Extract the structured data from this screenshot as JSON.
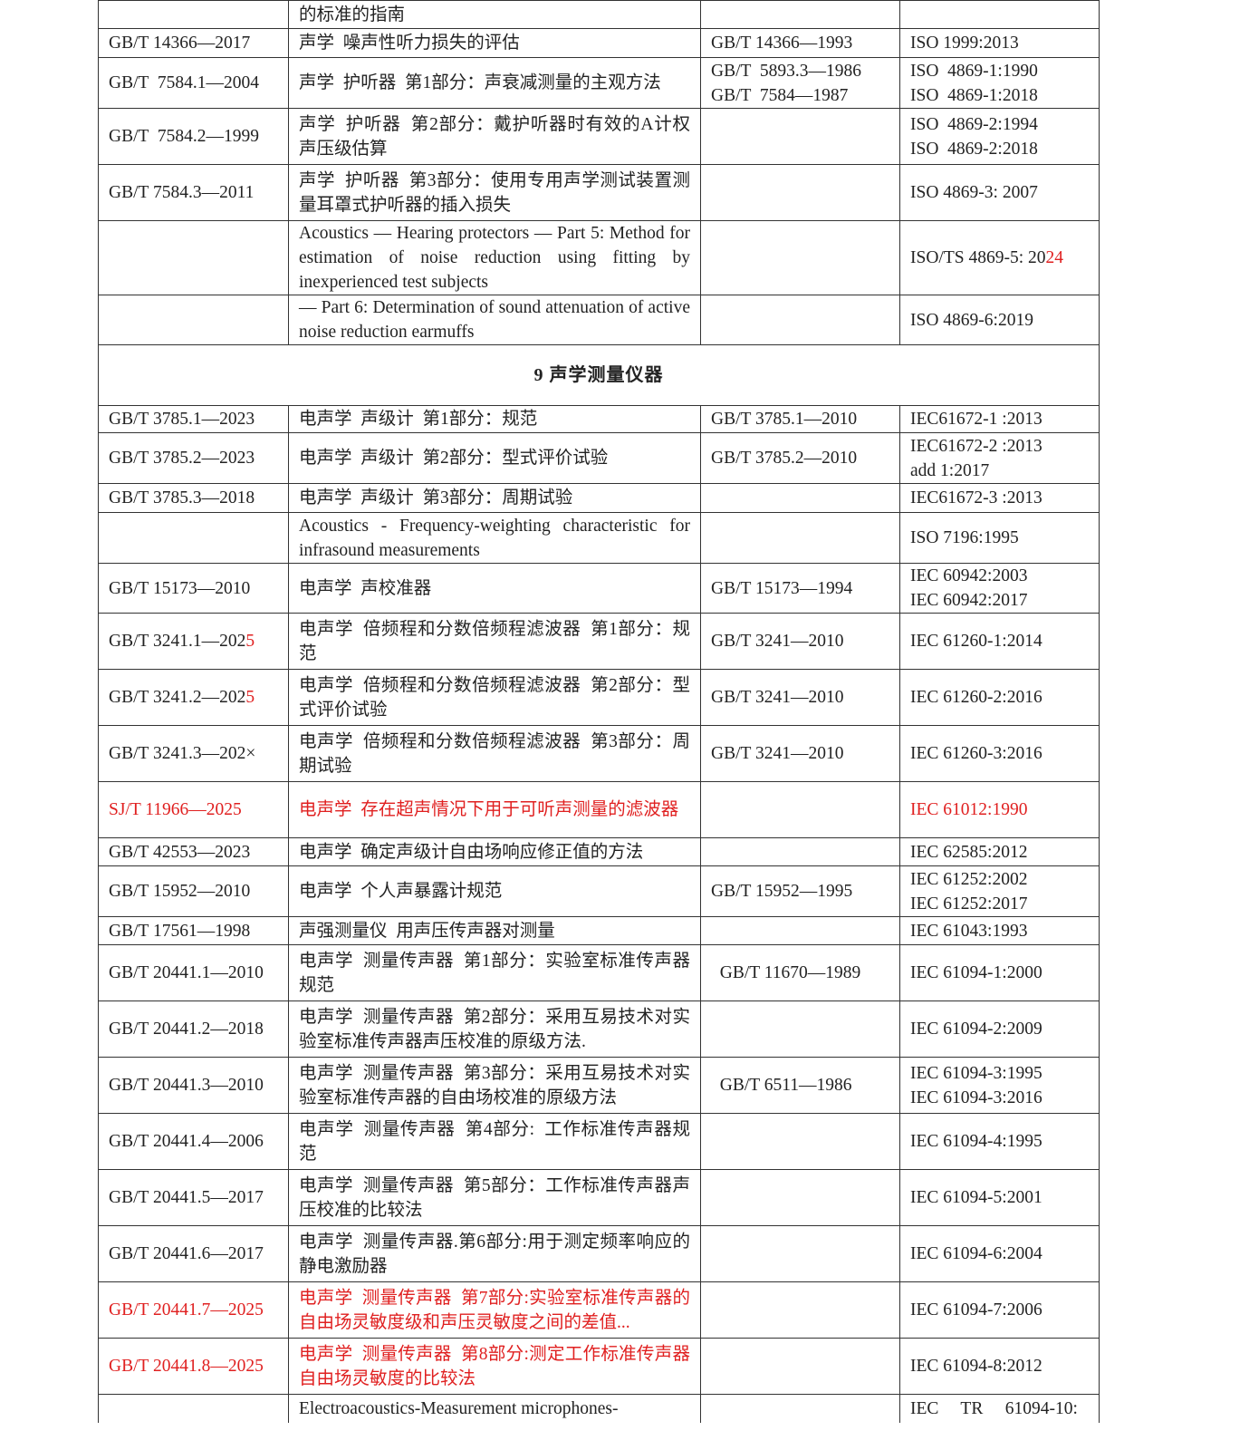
{
  "table": {
    "rows": [
      {
        "c1": [],
        "c2": [
          [
            {
              "t": "的标准的指南"
            }
          ]
        ],
        "c3": [],
        "c4": []
      },
      {
        "c1": [
          [
            {
              "t": "GB/T 14366—2017"
            }
          ]
        ],
        "c2": [
          [
            {
              "t": "声学  噪声性听力损失的评估"
            }
          ]
        ],
        "c3": [
          [
            {
              "t": "GB/T 14366—1993"
            }
          ]
        ],
        "c4": [
          [
            {
              "t": "ISO 1999:2013"
            }
          ]
        ]
      },
      {
        "c1": [
          [
            {
              "t": "GB/T  7584.1—2004"
            }
          ]
        ],
        "c2": [
          [
            {
              "t": "声学  护听器  第1部分：声衰减测量的主观方法"
            }
          ]
        ],
        "c3": [
          [
            {
              "t": "GB/T  5893.3—1986"
            }
          ],
          [
            {
              "t": "GB/T  7584—1987"
            }
          ]
        ],
        "c4": [
          [
            {
              "t": "ISO  4869-1:1990"
            }
          ],
          [
            {
              "t": "ISO  4869-1:2018"
            }
          ]
        ]
      },
      {
        "c1": [
          [
            {
              "t": "GB/T  7584.2—1999"
            }
          ]
        ],
        "c2": [
          [
            {
              "t": "声学  护听器  第2部分：戴护听器时有效的A计权声压级估算"
            }
          ]
        ],
        "c3": [],
        "c4": [
          [
            {
              "t": "ISO  4869-2:1994"
            }
          ],
          [
            {
              "t": "ISO  4869-2:2018"
            }
          ]
        ]
      },
      {
        "c1": [
          [
            {
              "t": "GB/T 7584.3—2011"
            }
          ]
        ],
        "c2": [
          [
            {
              "t": "声学  护听器  第3部分：使用专用声学测试装置测量耳罩式护听器的插入损失"
            }
          ]
        ],
        "c3": [],
        "c4": [
          [
            {
              "t": "ISO 4869-3: 2007"
            }
          ]
        ]
      },
      {
        "c1": [],
        "c2": [
          [
            {
              "t": "Acoustics — Hearing protectors — Part 5: Method for estimation of noise reduction using fitting by inexperienced test subjects"
            }
          ]
        ],
        "c3": [],
        "c4": [
          [
            {
              "t": "ISO/TS 4869-5: 20"
            },
            {
              "t": "24",
              "red": true
            }
          ]
        ]
      },
      {
        "c1": [],
        "c2": [
          [
            {
              "t": "— Part 6: Determination of sound attenuation of active noise reduction earmuffs"
            }
          ]
        ],
        "c3": [],
        "c4": [
          [
            {
              "t": "ISO 4869-6:2019"
            }
          ]
        ]
      },
      {
        "section": "9    声学测量仪器"
      },
      {
        "c1": [
          [
            {
              "t": "GB/T 3785.1—2023"
            }
          ]
        ],
        "c2": [
          [
            {
              "t": "电声学  声级计  第1部分：规范"
            }
          ]
        ],
        "c3": [
          [
            {
              "t": "GB/T 3785.1—2010"
            }
          ]
        ],
        "c4": [
          [
            {
              "t": "IEC61672-1 :2013"
            }
          ]
        ]
      },
      {
        "c1": [
          [
            {
              "t": "GB/T 3785.2—2023"
            }
          ]
        ],
        "c2": [
          [
            {
              "t": "电声学  声级计  第2部分：型式评价试验"
            }
          ]
        ],
        "c3": [
          [
            {
              "t": "GB/T 3785.2—2010"
            }
          ]
        ],
        "c4": [
          [
            {
              "t": "IEC61672-2 :2013"
            }
          ],
          [
            {
              "t": "add 1:2017"
            }
          ]
        ]
      },
      {
        "c1": [
          [
            {
              "t": "GB/T 3785.3—2018"
            }
          ]
        ],
        "c2": [
          [
            {
              "t": "电声学  声级计  第3部分：周期试验"
            }
          ]
        ],
        "c3": [],
        "c4": [
          [
            {
              "t": "IEC61672-3 :2013"
            }
          ]
        ]
      },
      {
        "c1": [],
        "c2": [
          [
            {
              "t": "Acoustics - Frequency-weighting characteristic for infrasound measurements"
            }
          ]
        ],
        "c3": [],
        "c4": [
          [
            {
              "t": "ISO 7196:1995"
            }
          ]
        ]
      },
      {
        "c1": [
          [
            {
              "t": "GB/T 15173—2010"
            }
          ]
        ],
        "c2": [
          [
            {
              "t": "电声学  声校准器"
            }
          ]
        ],
        "c3": [
          [
            {
              "t": "GB/T 15173—1994"
            }
          ]
        ],
        "c4": [
          [
            {
              "t": "IEC 60942:2003"
            }
          ],
          [
            {
              "t": "IEC 60942:2017"
            }
          ]
        ]
      },
      {
        "c1": [
          [
            {
              "t": "GB/T 3241.1—202"
            },
            {
              "t": "5",
              "red": true
            }
          ]
        ],
        "c2": [
          [
            {
              "t": "电声学  倍频程和分数倍频程滤波器  第1部分：规范"
            }
          ]
        ],
        "c3": [
          [
            {
              "t": "GB/T 3241—2010"
            }
          ]
        ],
        "c4": [
          [
            {
              "t": "IEC 61260-1:2014"
            }
          ]
        ]
      },
      {
        "c1": [
          [
            {
              "t": "GB/T 3241.2—202"
            },
            {
              "t": "5",
              "red": true
            }
          ]
        ],
        "c2": [
          [
            {
              "t": "电声学  倍频程和分数倍频程滤波器  第2部分：型式评价试验"
            }
          ]
        ],
        "c3": [
          [
            {
              "t": "GB/T 3241—2010"
            }
          ]
        ],
        "c4": [
          [
            {
              "t": "IEC 61260-2:2016"
            }
          ]
        ]
      },
      {
        "c1": [
          [
            {
              "t": "GB/T 3241.3—202×"
            }
          ]
        ],
        "c2": [
          [
            {
              "t": "电声学  倍频程和分数倍频程滤波器  第3部分：周期试验"
            }
          ]
        ],
        "c3": [
          [
            {
              "t": "GB/T 3241—2010"
            }
          ]
        ],
        "c4": [
          [
            {
              "t": "IEC 61260-3:2016"
            }
          ]
        ]
      },
      {
        "c1": [
          [
            {
              "t": "SJ/T 11966—2025",
              "red": true
            }
          ]
        ],
        "c2": [
          [
            {
              "t": "电声学  存在超声情况下用于可听声测量的滤波器",
              "red": true
            }
          ]
        ],
        "c3": [],
        "c4": [
          [
            {
              "t": "IEC 61012:1990",
              "red": true
            }
          ]
        ]
      },
      {
        "c1": [
          [
            {
              "t": "GB/T 42553—2023"
            }
          ]
        ],
        "c2": [
          [
            {
              "t": "电声学  确定声级计自由场响应修正值的方法"
            }
          ]
        ],
        "c3": [],
        "c4": [
          [
            {
              "t": "IEC 62585:2012"
            }
          ]
        ]
      },
      {
        "c1": [
          [
            {
              "t": "GB/T 15952—2010"
            }
          ]
        ],
        "c2": [
          [
            {
              "t": "电声学  个人声暴露计规范"
            }
          ]
        ],
        "c3": [
          [
            {
              "t": "GB/T 15952—1995"
            }
          ]
        ],
        "c4": [
          [
            {
              "t": "IEC 61252:2002"
            }
          ],
          [
            {
              "t": "IEC 61252:2017"
            }
          ]
        ]
      },
      {
        "c1": [
          [
            {
              "t": "GB/T 17561—1998"
            }
          ]
        ],
        "c2": [
          [
            {
              "t": "声强测量仪  用声压传声器对测量"
            }
          ]
        ],
        "c3": [],
        "c4": [
          [
            {
              "t": "IEC 61043:1993"
            }
          ]
        ]
      },
      {
        "c1": [
          [
            {
              "t": "GB/T 20441.1—2010"
            }
          ]
        ],
        "c2": [
          [
            {
              "t": "电声学  测量传声器  第1部分：实验室标准传声器规范"
            }
          ]
        ],
        "c3": [
          [
            {
              "t": "  GB/T 11670—1989"
            }
          ]
        ],
        "c4": [
          [
            {
              "t": "IEC 61094-1:2000"
            }
          ]
        ]
      },
      {
        "c1": [
          [
            {
              "t": "GB/T 20441.2—2018"
            }
          ]
        ],
        "c2": [
          [
            {
              "t": "电声学  测量传声器  第2部分：采用互易技术对实验室标准传声器声压校准的原级方法."
            }
          ]
        ],
        "c3": [],
        "c4": [
          [
            {
              "t": "IEC 61094-2:2009"
            }
          ]
        ]
      },
      {
        "c1": [
          [
            {
              "t": "GB/T 20441.3—2010"
            }
          ]
        ],
        "c2": [
          [
            {
              "t": "电声学  测量传声器  第3部分：采用互易技术对实验室标准传声器的自由场校准的原级方法"
            }
          ]
        ],
        "c3": [
          [
            {
              "t": "  GB/T 6511—1986"
            }
          ]
        ],
        "c4": [
          [
            {
              "t": "IEC 61094-3:1995"
            }
          ],
          [
            {
              "t": "IEC 61094-3:2016"
            }
          ]
        ]
      },
      {
        "c1": [
          [
            {
              "t": "GB/T 20441.4—2006"
            }
          ]
        ],
        "c2": [
          [
            {
              "t": "电声学  测量传声器  第4部分:  工作标准传声器规范"
            }
          ]
        ],
        "c3": [],
        "c4": [
          [
            {
              "t": "IEC 61094-4:1995"
            }
          ]
        ]
      },
      {
        "c1": [
          [
            {
              "t": "GB/T 20441.5—2017"
            }
          ]
        ],
        "c2": [
          [
            {
              "t": "电声学  测量传声器  第5部分：工作标准传声器声压校准的比较法"
            }
          ]
        ],
        "c3": [],
        "c4": [
          [
            {
              "t": "IEC 61094-5:2001"
            }
          ]
        ]
      },
      {
        "c1": [
          [
            {
              "t": "GB/T 20441.6—2017"
            }
          ]
        ],
        "c2": [
          [
            {
              "t": "电声学  测量传声器.第6部分:用于测定频率响应的静电激励器"
            }
          ]
        ],
        "c3": [],
        "c4": [
          [
            {
              "t": "IEC 61094-6:2004"
            }
          ]
        ]
      },
      {
        "c1": [
          [
            {
              "t": "GB/T 20441.7—2025",
              "red": true
            }
          ]
        ],
        "c2": [
          [
            {
              "t": "电声学  测量传声器  第7部分:实验室标准传声器的自由场灵敏度级和声压灵敏度之间的差值...",
              "red": true
            }
          ]
        ],
        "c3": [],
        "c4": [
          [
            {
              "t": "IEC 61094-7:2006"
            }
          ]
        ]
      },
      {
        "c1": [
          [
            {
              "t": "GB/T 20441.8—2025",
              "red": true
            }
          ]
        ],
        "c2": [
          [
            {
              "t": "电声学  测量传声器  第8部分:测定工作标准传声器自由场灵敏度的比较法",
              "red": true
            }
          ]
        ],
        "c3": [],
        "c4": [
          [
            {
              "t": "IEC 61094-8:2012"
            }
          ]
        ]
      },
      {
        "c1": [],
        "c2": [
          [
            {
              "t": "Electroacoustics-Measurement microphones-"
            }
          ]
        ],
        "c3": [],
        "c4": [
          [
            {
              "t": "IEC     TR     61094-10:"
            }
          ]
        ]
      }
    ]
  },
  "colors": {
    "text": "#222222",
    "highlight": "#e02020",
    "border": "#333333"
  }
}
